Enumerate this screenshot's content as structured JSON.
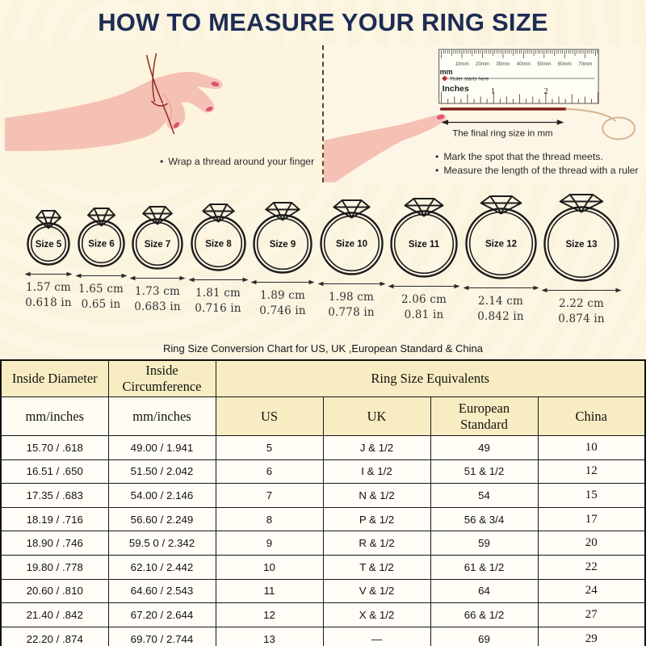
{
  "title": "HOW TO MEASURE YOUR RING SIZE",
  "instructions": {
    "left_bullet": "Wrap a thread around your finger",
    "right_bullets": [
      "Mark the spot that the thread meets.",
      "Measure the length of the thread with a ruler"
    ]
  },
  "ruler": {
    "unit_mm": "mm",
    "unit_inches": "Inches",
    "starts_here": "Ruler starts here",
    "mm_labels": [
      "10mm",
      "20mm",
      "30mm",
      "40mm",
      "50mm",
      "60mm",
      "70mm"
    ],
    "inch_labels": [
      "1",
      "2"
    ],
    "final_label": "The final ring size in mm"
  },
  "rings": [
    {
      "size": "Size 5",
      "cm": "1.57 cm",
      "inch": "0.618 in"
    },
    {
      "size": "Size 6",
      "cm": "1.65 cm",
      "inch": "0.65 in"
    },
    {
      "size": "Size 7",
      "cm": "1.73 cm",
      "inch": "0.683 in"
    },
    {
      "size": "Size 8",
      "cm": "1.81 cm",
      "inch": "0.716 in"
    },
    {
      "size": "Size 9",
      "cm": "1.89 cm",
      "inch": "0.746 in"
    },
    {
      "size": "Size 10",
      "cm": "1.98 cm",
      "inch": "0.778 in"
    },
    {
      "size": "Size 11",
      "cm": "2.06 cm",
      "inch": "0.81 in"
    },
    {
      "size": "Size 12",
      "cm": "2.14 cm",
      "inch": "0.842 in"
    },
    {
      "size": "Size 13",
      "cm": "2.22 cm",
      "inch": "0.874 in"
    }
  ],
  "table": {
    "caption": "Ring Size Conversion Chart for US, UK ,European Standard & China",
    "col_headers": {
      "inside_diameter": "Inside Diameter",
      "inside_circumference": "Inside Circumference",
      "equivalents": "Ring Size Equivalents",
      "diameter_units": "mm/inches",
      "circumference_units": "mm/inches",
      "us": "US",
      "uk": "UK",
      "european": "European Standard",
      "china": "China"
    },
    "rows": [
      [
        "15.70 / .618",
        "49.00 / 1.941",
        "5",
        "J & 1/2",
        "49",
        "10"
      ],
      [
        "16.51 / .650",
        "51.50 / 2.042",
        "6",
        "I & 1/2",
        "51 & 1/2",
        "12"
      ],
      [
        "17.35 / .683",
        "54.00 / 2.146",
        "7",
        "N & 1/2",
        "54",
        "15"
      ],
      [
        "18.19 / .716",
        "56.60 / 2.249",
        "8",
        "P & 1/2",
        "56 & 3/4",
        "17"
      ],
      [
        "18.90 / .746",
        "59.5 0 / 2.342",
        "9",
        "R & 1/2",
        "59",
        "20"
      ],
      [
        "19.80 / .778",
        "62.10 / 2.442",
        "10",
        "T & 1/2",
        "61 & 1/2",
        "22"
      ],
      [
        "20.60 / .810",
        "64.60 / 2.543",
        "11",
        "V & 1/2",
        "64",
        "24"
      ],
      [
        "21.40 / .842",
        "67.20 / 2.644",
        "12",
        "X & 1/2",
        "66 & 1/2",
        "27"
      ],
      [
        "22.20 / .874",
        "69.70 / 2.744",
        "13",
        "—",
        "69",
        "29"
      ]
    ]
  },
  "colors": {
    "title_navy": "#1e2c55",
    "ruler_start_red": "#c1272d",
    "thread_dark_red": "#7c1e15",
    "header_yellow": "#f8edc2",
    "page_cream": "#fcf6e3",
    "ink": "#161616"
  }
}
